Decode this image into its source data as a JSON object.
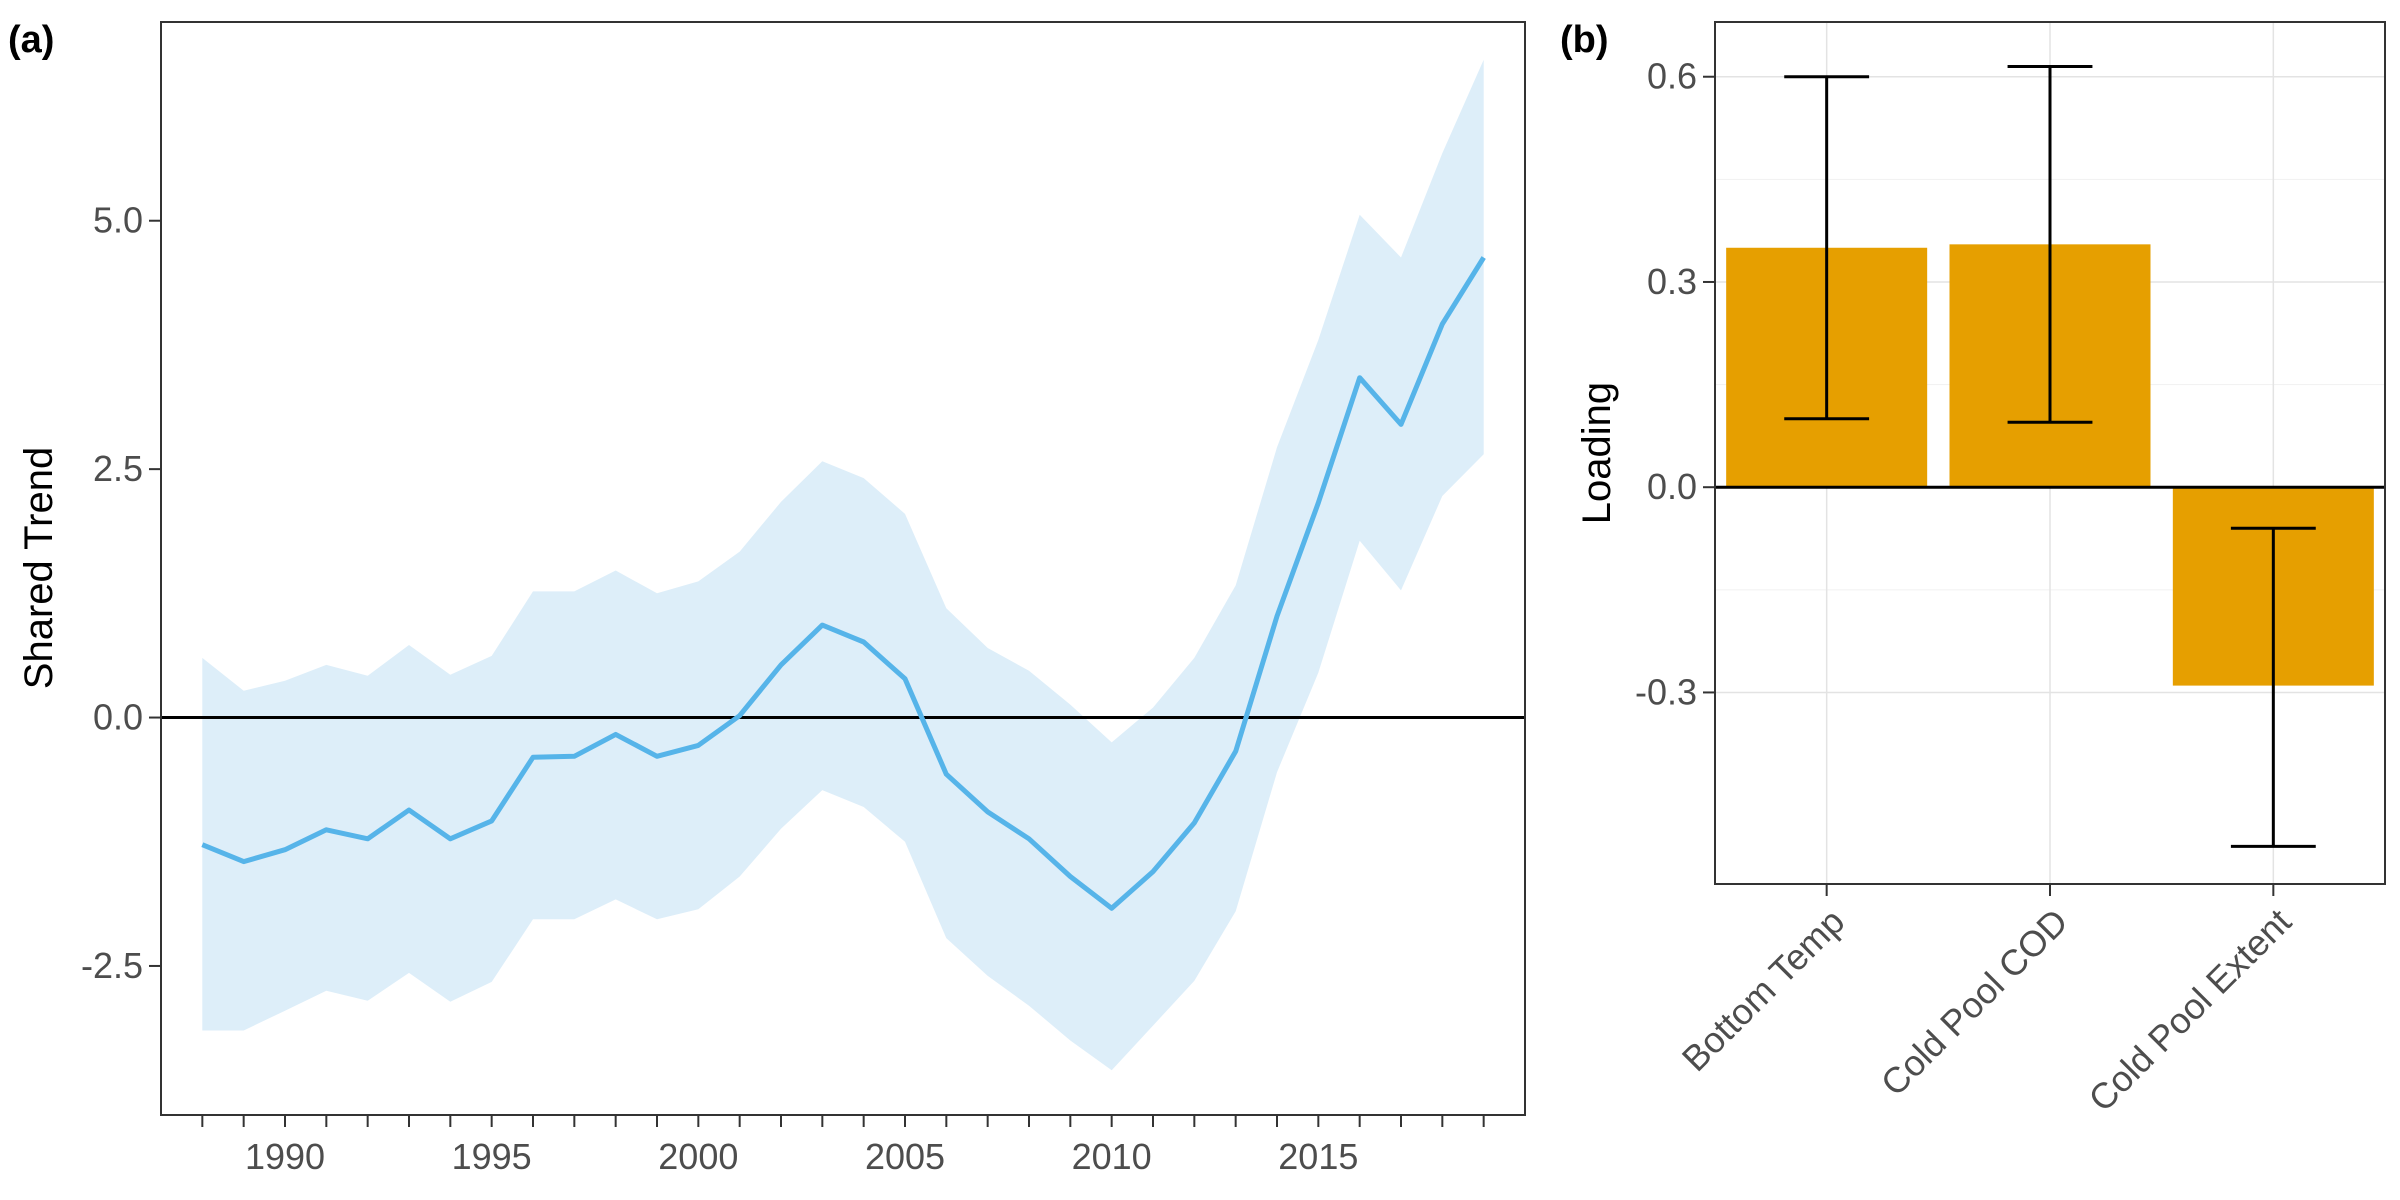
{
  "figure": {
    "panels": [
      "(a)",
      "(b)"
    ]
  },
  "chart_data": [
    {
      "type": "line",
      "panel": "(a)",
      "title": "",
      "xlabel": "",
      "ylabel": "Shared Trend",
      "xlim": [
        1987,
        2020
      ],
      "ylim": [
        -4.0,
        7.0
      ],
      "x_ticks": [
        1990,
        1995,
        2000,
        2005,
        2010,
        2015
      ],
      "x_tick_labels": [
        "1990",
        "1995",
        "2000",
        "2005",
        "2010",
        "2015"
      ],
      "x_minor_ticks": [
        1988,
        1989,
        1990,
        1991,
        1992,
        1993,
        1994,
        1995,
        1996,
        1997,
        1998,
        1999,
        2000,
        2001,
        2002,
        2003,
        2004,
        2005,
        2006,
        2007,
        2008,
        2009,
        2010,
        2011,
        2012,
        2013,
        2014,
        2015,
        2016,
        2017,
        2018,
        2019
      ],
      "y_ticks": [
        -2.5,
        0.0,
        2.5,
        5.0
      ],
      "y_tick_labels": [
        "-2.5",
        "0.0",
        "2.5",
        "5.0"
      ],
      "grid": false,
      "reference_line_y": 0,
      "line_color": "#56B4E9",
      "ribbon_color": "#DDEEF9",
      "x": [
        1988,
        1989,
        1990,
        1991,
        1992,
        1993,
        1994,
        1995,
        1996,
        1997,
        1998,
        1999,
        2000,
        2001,
        2002,
        2003,
        2004,
        2005,
        2006,
        2007,
        2008,
        2009,
        2010,
        2011,
        2012,
        2013,
        2014,
        2015,
        2016,
        2017,
        2018,
        2019
      ],
      "series": [
        {
          "values": [
            -1.28,
            -1.45,
            -1.33,
            -1.13,
            -1.22,
            -0.93,
            -1.22,
            -1.04,
            -0.4,
            -0.39,
            -0.17,
            -0.39,
            -0.28,
            0.02,
            0.53,
            0.93,
            0.76,
            0.39,
            -0.57,
            -0.95,
            -1.22,
            -1.6,
            -1.92,
            -1.55,
            -1.06,
            -0.34,
            1.02,
            2.16,
            3.42,
            2.95,
            3.96,
            4.63
          ],
          "lower": [
            -3.15,
            -3.15,
            -2.95,
            -2.75,
            -2.85,
            -2.57,
            -2.86,
            -2.66,
            -2.03,
            -2.03,
            -1.83,
            -2.03,
            -1.93,
            -1.6,
            -1.12,
            -0.73,
            -0.9,
            -1.25,
            -2.22,
            -2.6,
            -2.9,
            -3.25,
            -3.55,
            -3.1,
            -2.65,
            -1.95,
            -0.55,
            0.45,
            1.78,
            1.28,
            2.23,
            2.65
          ],
          "upper": [
            0.6,
            0.27,
            0.37,
            0.53,
            0.42,
            0.73,
            0.43,
            0.62,
            1.27,
            1.27,
            1.48,
            1.25,
            1.37,
            1.67,
            2.17,
            2.58,
            2.41,
            2.05,
            1.1,
            0.7,
            0.47,
            0.13,
            -0.25,
            0.1,
            0.6,
            1.33,
            2.72,
            3.8,
            5.06,
            4.63,
            5.68,
            6.62
          ]
        }
      ]
    },
    {
      "type": "bar",
      "panel": "(b)",
      "title": "",
      "xlabel": "",
      "ylabel": "Loading",
      "categories": [
        "Bottom Temp",
        "Cold Pool COD",
        "Cold Pool Extent"
      ],
      "values": [
        0.35,
        0.355,
        -0.29
      ],
      "error_low": [
        0.1,
        0.095,
        -0.525
      ],
      "error_high": [
        0.6,
        0.615,
        -0.06
      ],
      "ylim": [
        -0.58,
        0.68
      ],
      "y_ticks": [
        -0.3,
        0.0,
        0.3,
        0.6
      ],
      "y_tick_labels": [
        "-0.3",
        "0.0",
        "0.3",
        "0.6"
      ],
      "grid": true,
      "reference_line_y": 0,
      "bar_color": "#E69F00"
    }
  ]
}
